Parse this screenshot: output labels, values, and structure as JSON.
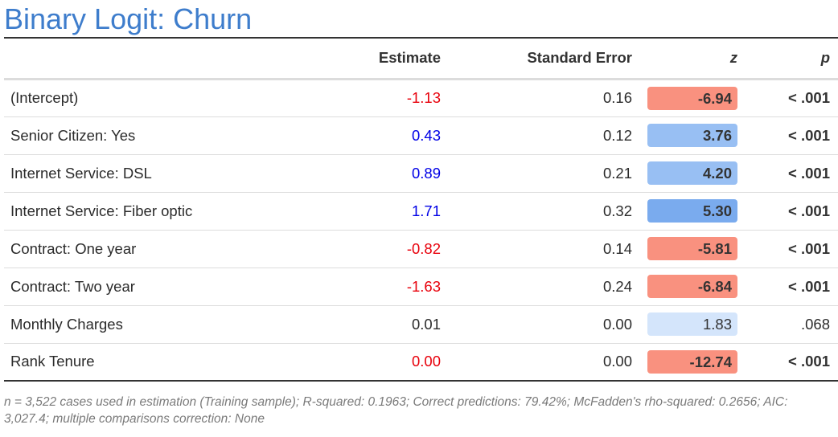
{
  "title": "Binary Logit: Churn",
  "columns": {
    "label": "",
    "estimate": "Estimate",
    "se": "Standard Error",
    "z": "z",
    "p": "p"
  },
  "colors": {
    "title": "#3e7dcc",
    "negative_text": "#e8000b",
    "positive_text": "#0000e6",
    "neg_strong": "#f9917f",
    "pos_strong": "#7aabee",
    "pos_medium": "#98bff3",
    "pos_light": "#d4e5fb"
  },
  "rows": [
    {
      "label": "(Intercept)",
      "estimate": "-1.13",
      "estimate_sign": "neg",
      "se": "0.16",
      "z": "-6.94",
      "z_shade": "neg_strong",
      "z_bold": true,
      "p": "< .001",
      "p_bold": true
    },
    {
      "label": "Senior Citizen: Yes",
      "estimate": "0.43",
      "estimate_sign": "pos",
      "se": "0.12",
      "z": "3.76",
      "z_shade": "pos_medium",
      "z_bold": true,
      "p": "< .001",
      "p_bold": true
    },
    {
      "label": "Internet Service: DSL",
      "estimate": "0.89",
      "estimate_sign": "pos",
      "se": "0.21",
      "z": "4.20",
      "z_shade": "pos_medium",
      "z_bold": true,
      "p": "< .001",
      "p_bold": true
    },
    {
      "label": "Internet Service: Fiber optic",
      "estimate": "1.71",
      "estimate_sign": "pos",
      "se": "0.32",
      "z": "5.30",
      "z_shade": "pos_strong",
      "z_bold": true,
      "p": "< .001",
      "p_bold": true
    },
    {
      "label": "Contract: One year",
      "estimate": "-0.82",
      "estimate_sign": "neg",
      "se": "0.14",
      "z": "-5.81",
      "z_shade": "neg_strong",
      "z_bold": true,
      "p": "< .001",
      "p_bold": true
    },
    {
      "label": "Contract: Two year",
      "estimate": "-1.63",
      "estimate_sign": "neg",
      "se": "0.24",
      "z": "-6.84",
      "z_shade": "neg_strong",
      "z_bold": true,
      "p": "< .001",
      "p_bold": true
    },
    {
      "label": "Monthly Charges",
      "estimate": "0.01",
      "estimate_sign": "none",
      "se": "0.00",
      "z": "1.83",
      "z_shade": "pos_light",
      "z_bold": false,
      "p": ".068",
      "p_bold": false
    },
    {
      "label": "Rank Tenure",
      "estimate": "0.00",
      "estimate_sign": "neg",
      "se": "0.00",
      "z": "-12.74",
      "z_shade": "neg_strong",
      "z_bold": true,
      "p": "< .001",
      "p_bold": true
    }
  ],
  "footnote": "n = 3,522 cases used in estimation (Training sample); R-squared: 0.1963; Correct predictions: 79.42%; McFadden's rho-squared: 0.2656; AIC: 3,027.4; multiple comparisons correction: None"
}
